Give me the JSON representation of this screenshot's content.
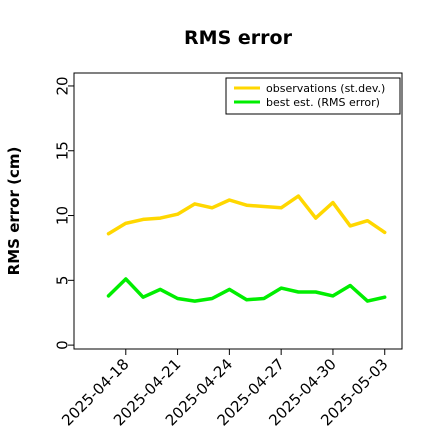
{
  "chart_data": {
    "type": "line",
    "title": "RMS error",
    "ylabel": "RMS error (cm)",
    "xlabel": "",
    "ylim": [
      -0.3,
      21.0
    ],
    "yticks": [
      0,
      5,
      10,
      15,
      20
    ],
    "xlim": [
      "2025-04-15",
      "2025-05-04"
    ],
    "xticks": [
      "2025-04-18",
      "2025-04-21",
      "2025-04-24",
      "2025-04-27",
      "2025-04-30",
      "2025-05-03"
    ],
    "highlight_tick": "2025-04-24",
    "highlight_color": "#228B22",
    "grid": false,
    "legend_position": "top-right",
    "series": [
      {
        "name": "observations (st.dev.)",
        "color": "#FFD700",
        "x": [
          "2025-04-17",
          "2025-04-18",
          "2025-04-19",
          "2025-04-20",
          "2025-04-21",
          "2025-04-22",
          "2025-04-23",
          "2025-04-24",
          "2025-04-25",
          "2025-04-26",
          "2025-04-27",
          "2025-04-28",
          "2025-04-29",
          "2025-04-30",
          "2025-05-01",
          "2025-05-02",
          "2025-05-03"
        ],
        "values": [
          8.6,
          9.4,
          9.7,
          9.8,
          10.1,
          10.9,
          10.6,
          11.2,
          10.8,
          10.7,
          10.6,
          11.5,
          9.8,
          11.0,
          9.2,
          9.6,
          8.7
        ]
      },
      {
        "name": "best est. (RMS error)",
        "color": "#00EE00",
        "x": [
          "2025-04-17",
          "2025-04-18",
          "2025-04-19",
          "2025-04-20",
          "2025-04-21",
          "2025-04-22",
          "2025-04-23",
          "2025-04-24",
          "2025-04-25",
          "2025-04-26",
          "2025-04-27",
          "2025-04-28",
          "2025-04-29",
          "2025-04-30",
          "2025-05-01",
          "2025-05-02",
          "2025-05-03"
        ],
        "values": [
          3.8,
          5.1,
          3.7,
          4.3,
          3.6,
          3.4,
          3.6,
          4.3,
          3.5,
          3.6,
          4.4,
          4.1,
          4.1,
          3.8,
          4.6,
          3.4,
          3.7
        ]
      }
    ]
  }
}
